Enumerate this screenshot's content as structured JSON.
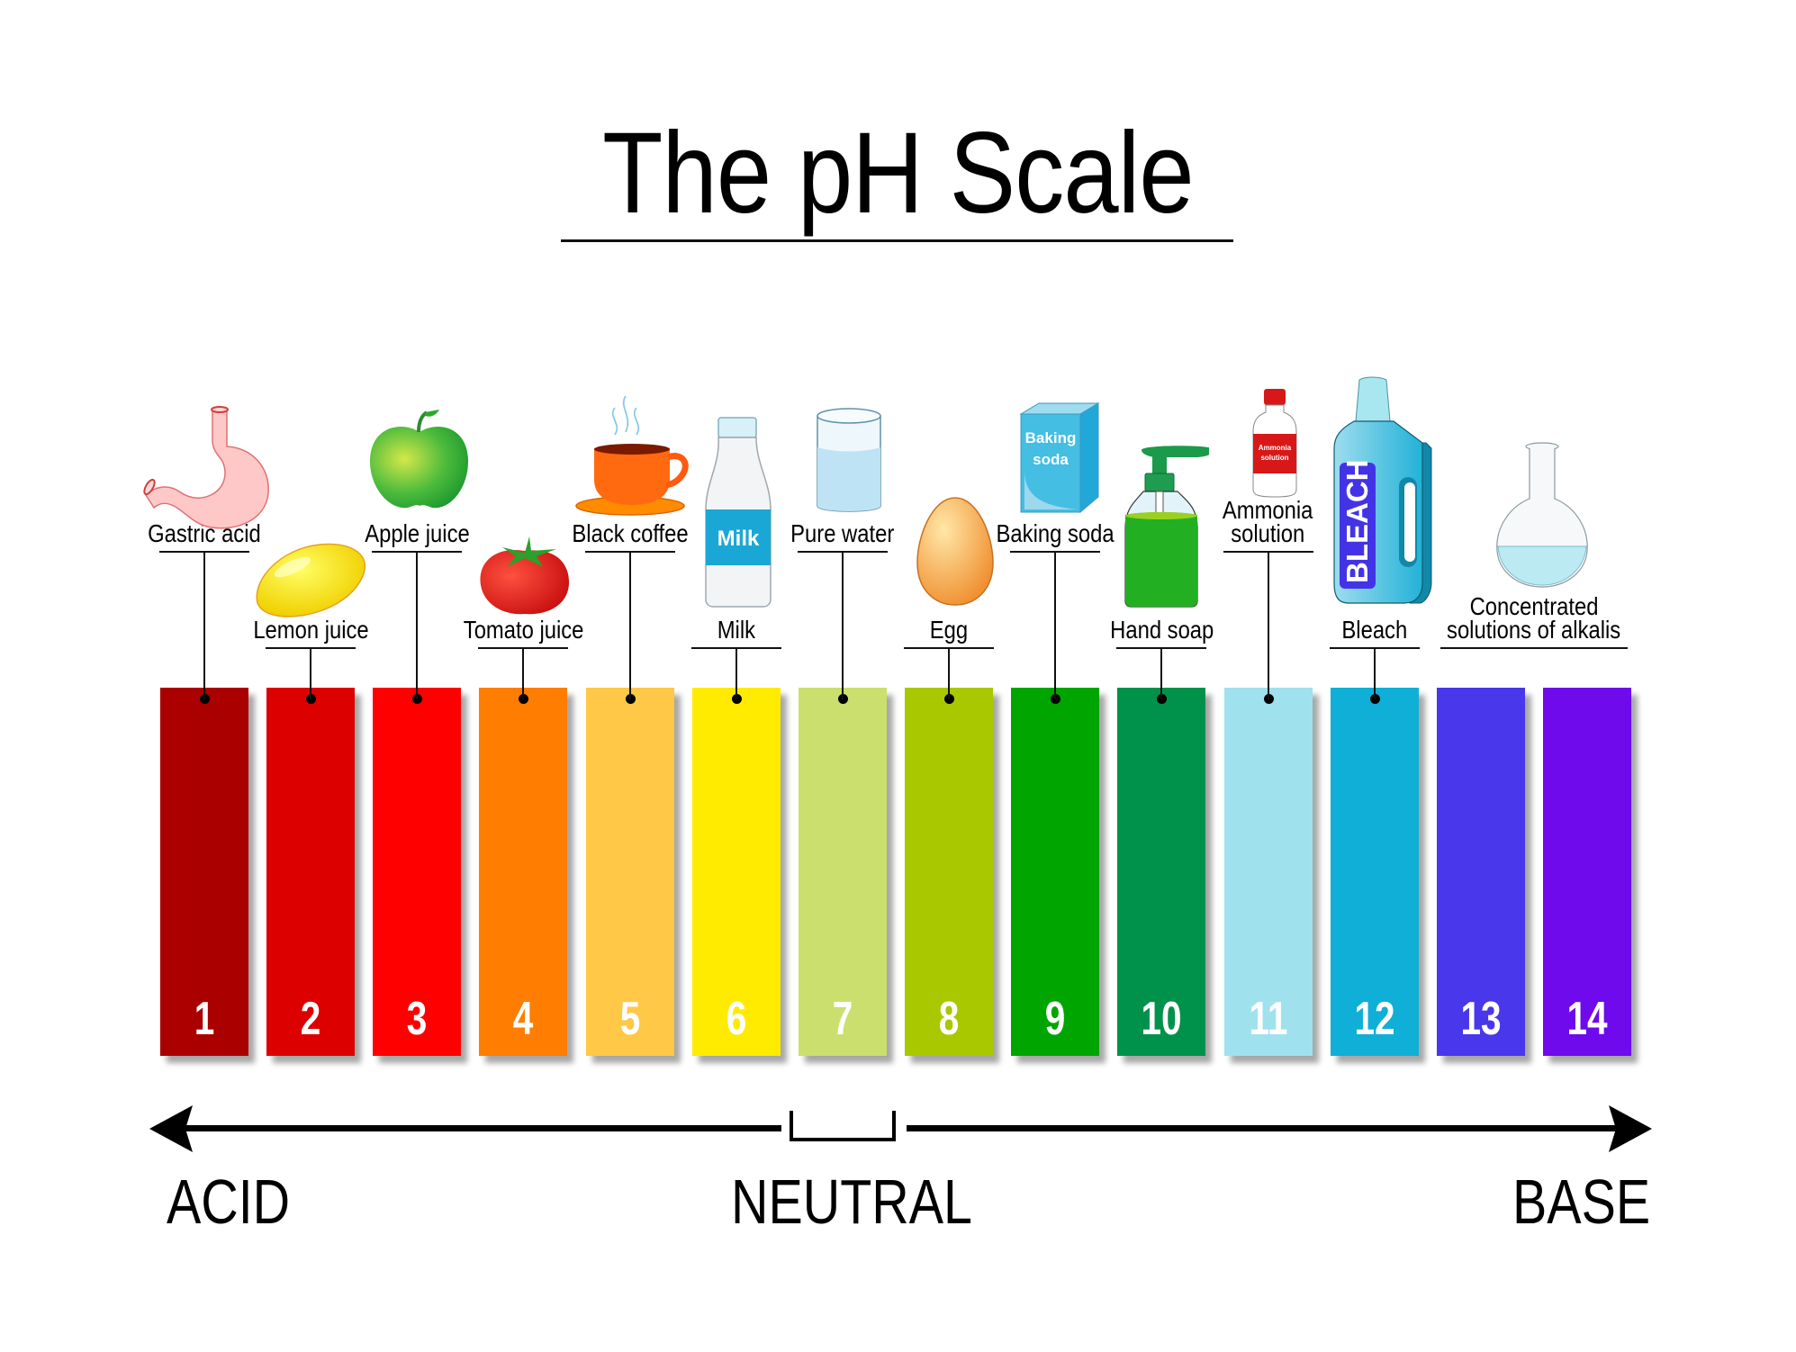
{
  "title": "The pH Scale",
  "scale": {
    "left_label": "ACID",
    "center_label": "NEUTRAL",
    "right_label": "BASE"
  },
  "bars": [
    {
      "ph": "1",
      "color": "#AA0000"
    },
    {
      "ph": "2",
      "color": "#DD0000"
    },
    {
      "ph": "3",
      "color": "#FF0000"
    },
    {
      "ph": "4",
      "color": "#FF7D00"
    },
    {
      "ph": "5",
      "color": "#FFC846"
    },
    {
      "ph": "6",
      "color": "#FFEB00"
    },
    {
      "ph": "7",
      "color": "#CBDF6E"
    },
    {
      "ph": "8",
      "color": "#AAC800"
    },
    {
      "ph": "9",
      "color": "#00A500"
    },
    {
      "ph": "10",
      "color": "#00914B"
    },
    {
      "ph": "11",
      "color": "#A0E1EE"
    },
    {
      "ph": "12",
      "color": "#0FAFD7"
    },
    {
      "ph": "13",
      "color": "#4837EB"
    },
    {
      "ph": "14",
      "color": "#6E0AEB"
    }
  ],
  "substances": [
    {
      "ph": 1,
      "label": "Gastric acid",
      "icon": "stomach-icon"
    },
    {
      "ph": 2,
      "label": "Lemon juice",
      "icon": "lemon-icon"
    },
    {
      "ph": 3,
      "label": "Apple juice",
      "icon": "apple-icon"
    },
    {
      "ph": 4,
      "label": "Tomato juice",
      "icon": "tomato-icon"
    },
    {
      "ph": 5,
      "label": "Black coffee",
      "icon": "coffee-cup-icon"
    },
    {
      "ph": 6,
      "label": "Milk",
      "icon": "milk-bottle-icon",
      "icon_text": "Milk"
    },
    {
      "ph": 7,
      "label": "Pure water",
      "icon": "water-glass-icon"
    },
    {
      "ph": 8,
      "label": "Egg",
      "icon": "egg-icon"
    },
    {
      "ph": 9,
      "label": "Baking soda",
      "icon": "baking-soda-box-icon",
      "icon_text_1": "Baking",
      "icon_text_2": "soda"
    },
    {
      "ph": 10,
      "label": "Hand soap",
      "icon": "soap-dispenser-icon"
    },
    {
      "ph": 11,
      "label_1": "Ammonia",
      "label_2": "solution",
      "icon": "ammonia-bottle-icon",
      "icon_text_1": "Ammonia",
      "icon_text_2": "solution"
    },
    {
      "ph": 12,
      "label": "Bleach",
      "icon": "bleach-bottle-icon",
      "icon_text": "BLEACH"
    },
    {
      "ph": 13,
      "label_1": "Concentrated",
      "label_2": "solutions of alkalis",
      "icon": "flask-icon"
    }
  ],
  "chart_data": {
    "type": "table",
    "title": "The pH Scale",
    "categories": [
      "1",
      "2",
      "3",
      "4",
      "5",
      "6",
      "7",
      "8",
      "9",
      "10",
      "11",
      "12",
      "13",
      "14"
    ],
    "colors": [
      "#AA0000",
      "#DD0000",
      "#FF0000",
      "#FF7D00",
      "#FFC846",
      "#FFEB00",
      "#CBDF6E",
      "#AAC800",
      "#00A500",
      "#00914B",
      "#A0E1EE",
      "#0FAFD7",
      "#4837EB",
      "#6E0AEB"
    ],
    "examples": [
      {
        "ph": 1,
        "substance": "Gastric acid"
      },
      {
        "ph": 2,
        "substance": "Lemon juice"
      },
      {
        "ph": 3,
        "substance": "Apple juice"
      },
      {
        "ph": 4,
        "substance": "Tomato juice"
      },
      {
        "ph": 5,
        "substance": "Black coffee"
      },
      {
        "ph": 6,
        "substance": "Milk"
      },
      {
        "ph": 7,
        "substance": "Pure water"
      },
      {
        "ph": 8,
        "substance": "Egg"
      },
      {
        "ph": 9,
        "substance": "Baking soda"
      },
      {
        "ph": 10,
        "substance": "Hand soap"
      },
      {
        "ph": 11,
        "substance": "Ammonia solution"
      },
      {
        "ph": 12,
        "substance": "Bleach"
      },
      {
        "ph": "13-14",
        "substance": "Concentrated solutions of alkalis"
      }
    ],
    "axis_labels": {
      "left": "ACID",
      "center": "NEUTRAL",
      "right": "BASE"
    },
    "neutral_ph": 7
  }
}
